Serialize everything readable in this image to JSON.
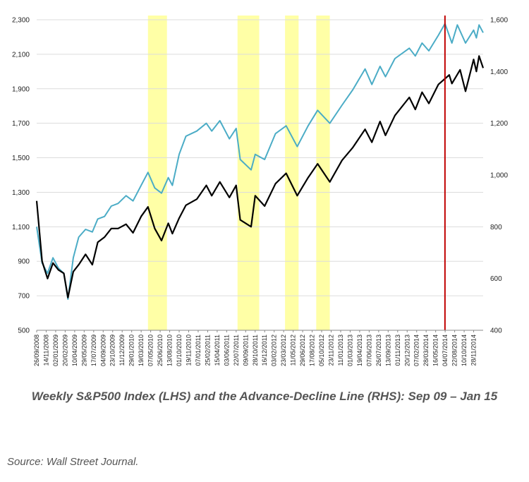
{
  "caption": "Weekly S&P500 Index (LHS) and the Advance-Decline Line (RHS): Sep 09 – Jan 15",
  "source": "Source: Wall Street Journal.",
  "chart_data": {
    "type": "line",
    "title": "Weekly S&P500 Index (LHS) and the Advance-Decline Line (RHS): Sep 09 – Jan 15",
    "y_left_range": [
      500,
      2300
    ],
    "y_right_range": [
      400,
      1600
    ],
    "y_left_ticks": [
      "500",
      "700",
      "900",
      "1,100",
      "1,300",
      "1,500",
      "1,700",
      "1,900",
      "2,100",
      "2,300"
    ],
    "y_right_ticks": [
      "400",
      "600",
      "800",
      "1,000",
      "1,200",
      "1,400",
      "1,600"
    ],
    "x_range": [
      "2008-09-26",
      "2015-01-16"
    ],
    "x_ticks": [
      "26/09/2008",
      "14/11/2008",
      "02/01/2009",
      "20/02/2009",
      "10/04/2009",
      "29/05/2009",
      "17/07/2009",
      "04/09/2009",
      "23/10/2009",
      "11/12/2009",
      "29/01/2010",
      "19/03/2010",
      "07/05/2010",
      "25/06/2010",
      "13/08/2010",
      "01/10/2010",
      "19/11/2010",
      "07/01/2011",
      "25/02/2011",
      "15/04/2011",
      "03/06/2011",
      "22/07/2011",
      "09/09/2011",
      "28/10/2011",
      "16/12/2011",
      "03/02/2012",
      "23/03/2012",
      "11/05/2012",
      "29/06/2012",
      "17/08/2012",
      "05/10/2012",
      "23/11/2012",
      "11/01/2013",
      "01/03/2013",
      "19/04/2013",
      "07/06/2013",
      "26/07/2013",
      "13/09/2013",
      "01/11/2013",
      "20/12/2013",
      "07/02/2014",
      "28/03/2014",
      "16/05/2014",
      "04/07/2014",
      "22/08/2014",
      "10/10/2014",
      "28/11/2014"
    ],
    "grid": true,
    "legend": "none",
    "series": [
      {
        "name": "S&P500 Index (LHS)",
        "axis": "left",
        "color": "#000000",
        "points": [
          [
            "2008-09-26",
            1250
          ],
          [
            "2008-10-24",
            900
          ],
          [
            "2008-11-21",
            800
          ],
          [
            "2008-12-19",
            890
          ],
          [
            "2009-01-16",
            850
          ],
          [
            "2009-02-13",
            830
          ],
          [
            "2009-03-06",
            690
          ],
          [
            "2009-04-03",
            840
          ],
          [
            "2009-05-01",
            880
          ],
          [
            "2009-06-05",
            940
          ],
          [
            "2009-07-10",
            880
          ],
          [
            "2009-08-07",
            1010
          ],
          [
            "2009-09-11",
            1040
          ],
          [
            "2009-10-16",
            1090
          ],
          [
            "2009-11-20",
            1090
          ],
          [
            "2009-12-31",
            1115
          ],
          [
            "2010-02-05",
            1065
          ],
          [
            "2010-03-19",
            1160
          ],
          [
            "2010-04-23",
            1215
          ],
          [
            "2010-05-28",
            1090
          ],
          [
            "2010-07-02",
            1020
          ],
          [
            "2010-08-06",
            1120
          ],
          [
            "2010-08-27",
            1060
          ],
          [
            "2010-10-01",
            1150
          ],
          [
            "2010-11-05",
            1225
          ],
          [
            "2010-12-31",
            1260
          ],
          [
            "2011-02-18",
            1340
          ],
          [
            "2011-03-18",
            1280
          ],
          [
            "2011-04-29",
            1360
          ],
          [
            "2011-06-17",
            1270
          ],
          [
            "2011-07-22",
            1340
          ],
          [
            "2011-08-12",
            1140
          ],
          [
            "2011-10-07",
            1100
          ],
          [
            "2011-10-28",
            1280
          ],
          [
            "2011-12-16",
            1220
          ],
          [
            "2012-02-10",
            1350
          ],
          [
            "2012-04-05",
            1410
          ],
          [
            "2012-06-01",
            1280
          ],
          [
            "2012-07-27",
            1385
          ],
          [
            "2012-09-14",
            1465
          ],
          [
            "2012-11-16",
            1360
          ],
          [
            "2013-01-18",
            1485
          ],
          [
            "2013-03-15",
            1560
          ],
          [
            "2013-05-17",
            1665
          ],
          [
            "2013-06-21",
            1590
          ],
          [
            "2013-08-02",
            1710
          ],
          [
            "2013-08-30",
            1630
          ],
          [
            "2013-10-18",
            1745
          ],
          [
            "2013-12-31",
            1850
          ],
          [
            "2014-01-31",
            1780
          ],
          [
            "2014-03-07",
            1880
          ],
          [
            "2014-04-11",
            1815
          ],
          [
            "2014-05-30",
            1925
          ],
          [
            "2014-07-25",
            1980
          ],
          [
            "2014-08-08",
            1930
          ],
          [
            "2014-09-19",
            2010
          ],
          [
            "2014-10-17",
            1885
          ],
          [
            "2014-11-28",
            2070
          ],
          [
            "2014-12-12",
            2000
          ],
          [
            "2014-12-26",
            2090
          ],
          [
            "2015-01-16",
            2020
          ]
        ]
      },
      {
        "name": "Advance-Decline Line (RHS)",
        "axis": "right",
        "color": "#4BACC6",
        "points": [
          [
            "2008-09-26",
            800
          ],
          [
            "2008-10-24",
            660
          ],
          [
            "2008-11-21",
            620
          ],
          [
            "2008-12-19",
            680
          ],
          [
            "2009-01-16",
            640
          ],
          [
            "2009-02-13",
            620
          ],
          [
            "2009-03-06",
            520
          ],
          [
            "2009-04-03",
            680
          ],
          [
            "2009-05-01",
            760
          ],
          [
            "2009-06-05",
            790
          ],
          [
            "2009-07-10",
            780
          ],
          [
            "2009-08-07",
            830
          ],
          [
            "2009-09-11",
            840
          ],
          [
            "2009-10-16",
            880
          ],
          [
            "2009-11-20",
            890
          ],
          [
            "2009-12-31",
            920
          ],
          [
            "2010-02-05",
            900
          ],
          [
            "2010-03-19",
            960
          ],
          [
            "2010-04-23",
            1010
          ],
          [
            "2010-05-28",
            950
          ],
          [
            "2010-07-02",
            930
          ],
          [
            "2010-08-06",
            990
          ],
          [
            "2010-08-27",
            960
          ],
          [
            "2010-10-01",
            1080
          ],
          [
            "2010-11-05",
            1150
          ],
          [
            "2010-12-31",
            1170
          ],
          [
            "2011-02-18",
            1200
          ],
          [
            "2011-03-18",
            1170
          ],
          [
            "2011-04-29",
            1210
          ],
          [
            "2011-06-17",
            1140
          ],
          [
            "2011-07-22",
            1180
          ],
          [
            "2011-08-12",
            1060
          ],
          [
            "2011-10-07",
            1020
          ],
          [
            "2011-10-28",
            1080
          ],
          [
            "2011-12-16",
            1060
          ],
          [
            "2012-02-10",
            1160
          ],
          [
            "2012-04-05",
            1190
          ],
          [
            "2012-06-01",
            1110
          ],
          [
            "2012-07-27",
            1190
          ],
          [
            "2012-09-14",
            1250
          ],
          [
            "2012-11-16",
            1200
          ],
          [
            "2013-01-18",
            1270
          ],
          [
            "2013-03-15",
            1330
          ],
          [
            "2013-05-17",
            1410
          ],
          [
            "2013-06-21",
            1350
          ],
          [
            "2013-08-02",
            1420
          ],
          [
            "2013-08-30",
            1380
          ],
          [
            "2013-10-18",
            1450
          ],
          [
            "2013-12-31",
            1490
          ],
          [
            "2014-01-31",
            1460
          ],
          [
            "2014-03-07",
            1510
          ],
          [
            "2014-04-11",
            1480
          ],
          [
            "2014-05-30",
            1540
          ],
          [
            "2014-07-03",
            1585
          ],
          [
            "2014-08-08",
            1510
          ],
          [
            "2014-09-05",
            1580
          ],
          [
            "2014-10-17",
            1510
          ],
          [
            "2014-11-28",
            1560
          ],
          [
            "2014-12-12",
            1530
          ],
          [
            "2014-12-26",
            1580
          ],
          [
            "2015-01-16",
            1550
          ]
        ]
      }
    ],
    "highlight_bands": [
      [
        "2010-04-23",
        "2010-07-30"
      ],
      [
        "2011-07-29",
        "2011-11-18"
      ],
      [
        "2012-03-30",
        "2012-06-08"
      ],
      [
        "2012-09-07",
        "2012-11-16"
      ]
    ],
    "band_color": "#FFFFA6",
    "marker_line": {
      "x": "2014-07-03",
      "color": "#C00000"
    }
  }
}
